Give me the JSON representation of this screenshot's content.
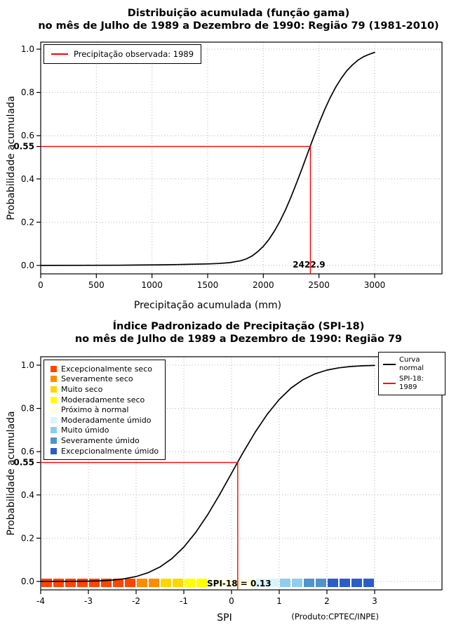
{
  "footer": "(Produto:CPTEC/INPE)",
  "chart_data": [
    {
      "type": "line",
      "title1": "Distribuição acumulada (função gama)",
      "title2": "no mês de Julho de 1989 a Dezembro de 1990: Região 79 (1981-2010)",
      "xlabel": "Precipitação acumulada (mm)",
      "ylabel": "Probabilidade acumulada",
      "xmin": 0,
      "xmax": 3000,
      "xticks": [
        0,
        500,
        1000,
        1500,
        2000,
        2500,
        3000
      ],
      "yticks": [
        0,
        0.2,
        0.4,
        0.6,
        0.8,
        1
      ],
      "grid": "dotted",
      "curve_color": "#000000",
      "curve": [
        [
          0,
          0
        ],
        [
          400,
          0.0005
        ],
        [
          700,
          0.001
        ],
        [
          900,
          0.002
        ],
        [
          1100,
          0.003
        ],
        [
          1300,
          0.005
        ],
        [
          1500,
          0.007
        ],
        [
          1600,
          0.009
        ],
        [
          1700,
          0.013
        ],
        [
          1800,
          0.022
        ],
        [
          1850,
          0.031
        ],
        [
          1900,
          0.044
        ],
        [
          1950,
          0.064
        ],
        [
          2000,
          0.088
        ],
        [
          2050,
          0.12
        ],
        [
          2100,
          0.159
        ],
        [
          2150,
          0.205
        ],
        [
          2200,
          0.258
        ],
        [
          2250,
          0.318
        ],
        [
          2300,
          0.383
        ],
        [
          2350,
          0.451
        ],
        [
          2400,
          0.521
        ],
        [
          2422.9,
          0.553
        ],
        [
          2450,
          0.59
        ],
        [
          2500,
          0.657
        ],
        [
          2550,
          0.719
        ],
        [
          2600,
          0.775
        ],
        [
          2650,
          0.824
        ],
        [
          2700,
          0.865
        ],
        [
          2750,
          0.9
        ],
        [
          2800,
          0.927
        ],
        [
          2850,
          0.949
        ],
        [
          2900,
          0.965
        ],
        [
          2950,
          0.976
        ],
        [
          3000,
          0.985
        ]
      ],
      "marker": {
        "x": 2422.9,
        "y": 0.55,
        "x_label": "2422.9",
        "y_label": "0.55",
        "color": "#FF0000"
      },
      "legend": {
        "label": "Precipitação observada: 1989",
        "color": "#FF0000",
        "position": "top-left"
      }
    },
    {
      "type": "line",
      "title1": "Índice Padronizado de Precipitação (SPI-18)",
      "title2": "no mês de Julho de 1989 a Dezembro de 1990: Região 79",
      "xlabel": "SPI",
      "ylabel": "Probabilidade acumulada",
      "xmin": -4,
      "xmax": 3,
      "xticks": [
        -4,
        -3,
        -2,
        -1,
        0,
        1,
        2,
        3
      ],
      "yticks": [
        0,
        0.2,
        0.4,
        0.6,
        0.8,
        1
      ],
      "grid": "dotted",
      "curve_color": "#000000",
      "curve": [
        [
          -4,
          0.0001
        ],
        [
          -3.5,
          0.0002
        ],
        [
          -3,
          0.0013
        ],
        [
          -2.75,
          0.003
        ],
        [
          -2.5,
          0.0062
        ],
        [
          -2.25,
          0.0122
        ],
        [
          -2,
          0.0228
        ],
        [
          -1.75,
          0.0401
        ],
        [
          -1.5,
          0.0668
        ],
        [
          -1.25,
          0.1056
        ],
        [
          -1,
          0.1587
        ],
        [
          -0.75,
          0.2266
        ],
        [
          -0.5,
          0.3085
        ],
        [
          -0.25,
          0.4013
        ],
        [
          0,
          0.5
        ],
        [
          0.13,
          0.5517
        ],
        [
          0.25,
          0.5987
        ],
        [
          0.5,
          0.6915
        ],
        [
          0.75,
          0.7734
        ],
        [
          1,
          0.8413
        ],
        [
          1.25,
          0.8944
        ],
        [
          1.5,
          0.9332
        ],
        [
          1.75,
          0.9599
        ],
        [
          2,
          0.9772
        ],
        [
          2.25,
          0.9878
        ],
        [
          2.5,
          0.9938
        ],
        [
          2.75,
          0.997
        ],
        [
          3,
          0.9987
        ]
      ],
      "marker": {
        "x": 0.13,
        "y": 0.55,
        "label": "SPI-18 = 0.13",
        "y_label": "0.55",
        "color": "#FF0000"
      },
      "legend_right": [
        {
          "label": "Curva normal",
          "color": "#000000"
        },
        {
          "label": "SPI-18: 1989",
          "color": "#FF0000"
        }
      ],
      "band_cell_width": 0.25,
      "categories": [
        {
          "label": "Excepcionalmente seco",
          "color": "#FF4500",
          "from": -4,
          "to": -2
        },
        {
          "label": "Severamente seco",
          "color": "#FF8C00",
          "from": -2,
          "to": -1.5
        },
        {
          "label": "Muito seco",
          "color": "#FFD700",
          "from": -1.5,
          "to": -1
        },
        {
          "label": "Moderadamente seco",
          "color": "#FFFF00",
          "from": -1,
          "to": -0.5
        },
        {
          "label": "Próximo à normal",
          "color": "#FFFFDE",
          "from": -0.5,
          "to": 0.5
        },
        {
          "label": "Moderadamente úmido",
          "color": "#D8F4FC",
          "from": 0.5,
          "to": 1
        },
        {
          "label": "Muito úmido",
          "color": "#8FCCEE",
          "from": 1,
          "to": 1.5
        },
        {
          "label": "Severamente úmido",
          "color": "#4F94CD",
          "from": 1.5,
          "to": 2
        },
        {
          "label": "Excepcionalmente úmido",
          "color": "#2B5DC9",
          "from": 2,
          "to": 3
        }
      ]
    }
  ]
}
